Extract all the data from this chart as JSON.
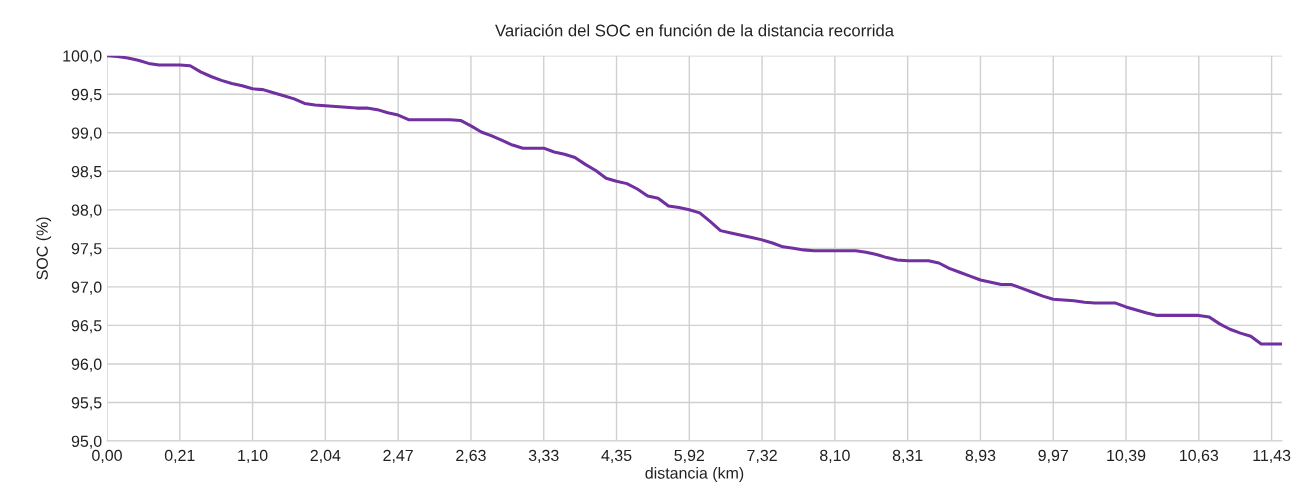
{
  "chart_data": {
    "type": "line",
    "title": "Variación del SOC en función de la distancia recorrida",
    "xlabel": "distancia (km)",
    "ylabel": "SOC (%)",
    "categories": [
      "0,00",
      null,
      null,
      null,
      null,
      null,
      null,
      "0,21",
      null,
      null,
      null,
      null,
      null,
      null,
      "1,10",
      null,
      null,
      null,
      null,
      null,
      null,
      "2,04",
      null,
      null,
      null,
      null,
      null,
      null,
      "2,47",
      null,
      null,
      null,
      null,
      null,
      null,
      "2,63",
      null,
      null,
      null,
      null,
      null,
      null,
      "3,33",
      null,
      null,
      null,
      null,
      null,
      null,
      "4,35",
      null,
      null,
      null,
      null,
      null,
      null,
      "5,92",
      null,
      null,
      null,
      null,
      null,
      null,
      "7,32",
      null,
      null,
      null,
      null,
      null,
      null,
      "8,10",
      null,
      null,
      null,
      null,
      null,
      null,
      "8,31",
      null,
      null,
      null,
      null,
      null,
      null,
      "8,93",
      null,
      null,
      null,
      null,
      null,
      null,
      "9,97",
      null,
      null,
      null,
      null,
      null,
      null,
      "10,39",
      null,
      null,
      null,
      null,
      null,
      null,
      "10,63",
      null,
      null,
      null,
      null,
      null,
      null,
      "11,43",
      null
    ],
    "series": [
      {
        "color": "#7030a0",
        "values": [
          100.0,
          99.99,
          99.97,
          99.94,
          99.9,
          99.88,
          99.88,
          99.88,
          99.87,
          99.79,
          99.73,
          99.68,
          99.64,
          99.61,
          99.57,
          99.56,
          99.52,
          99.48,
          99.44,
          99.38,
          99.36,
          99.35,
          99.34,
          99.33,
          99.32,
          99.32,
          99.3,
          99.26,
          99.23,
          99.17,
          99.17,
          99.17,
          99.17,
          99.17,
          99.16,
          99.09,
          99.01,
          98.96,
          98.9,
          98.84,
          98.8,
          98.8,
          98.8,
          98.75,
          98.72,
          98.68,
          98.59,
          98.51,
          98.41,
          98.37,
          98.34,
          98.27,
          98.18,
          98.15,
          98.05,
          98.03,
          98.0,
          97.96,
          97.85,
          97.73,
          97.7,
          97.67,
          97.64,
          97.61,
          97.57,
          97.52,
          97.5,
          97.48,
          97.47,
          97.47,
          97.47,
          97.47,
          97.47,
          97.45,
          97.42,
          97.38,
          97.35,
          97.34,
          97.34,
          97.34,
          97.31,
          97.24,
          97.19,
          97.14,
          97.09,
          97.06,
          97.03,
          97.03,
          96.98,
          96.93,
          96.88,
          96.84,
          96.83,
          96.82,
          96.8,
          96.79,
          96.79,
          96.79,
          96.74,
          96.7,
          96.66,
          96.63,
          96.63,
          96.63,
          96.63,
          96.63,
          96.61,
          96.52,
          96.45,
          96.4,
          96.36,
          96.26,
          96.26,
          96.26
        ]
      }
    ],
    "ylim": [
      95,
      100
    ],
    "yticks": [
      {
        "value": 95,
        "label": "95,0"
      },
      {
        "value": 95.5,
        "label": "95,5"
      },
      {
        "value": 96,
        "label": "96,0"
      },
      {
        "value": 96.5,
        "label": "96,5"
      },
      {
        "value": 97,
        "label": "97,0"
      },
      {
        "value": 97.5,
        "label": "97,5"
      },
      {
        "value": 98,
        "label": "98,0"
      },
      {
        "value": 98.5,
        "label": "98,5"
      },
      {
        "value": 99,
        "label": "99,0"
      },
      {
        "value": 99.5,
        "label": "99,5"
      },
      {
        "value": 100,
        "label": "100,0"
      }
    ],
    "grid": true,
    "marker": "none",
    "line_style": "solid",
    "legend": false
  }
}
